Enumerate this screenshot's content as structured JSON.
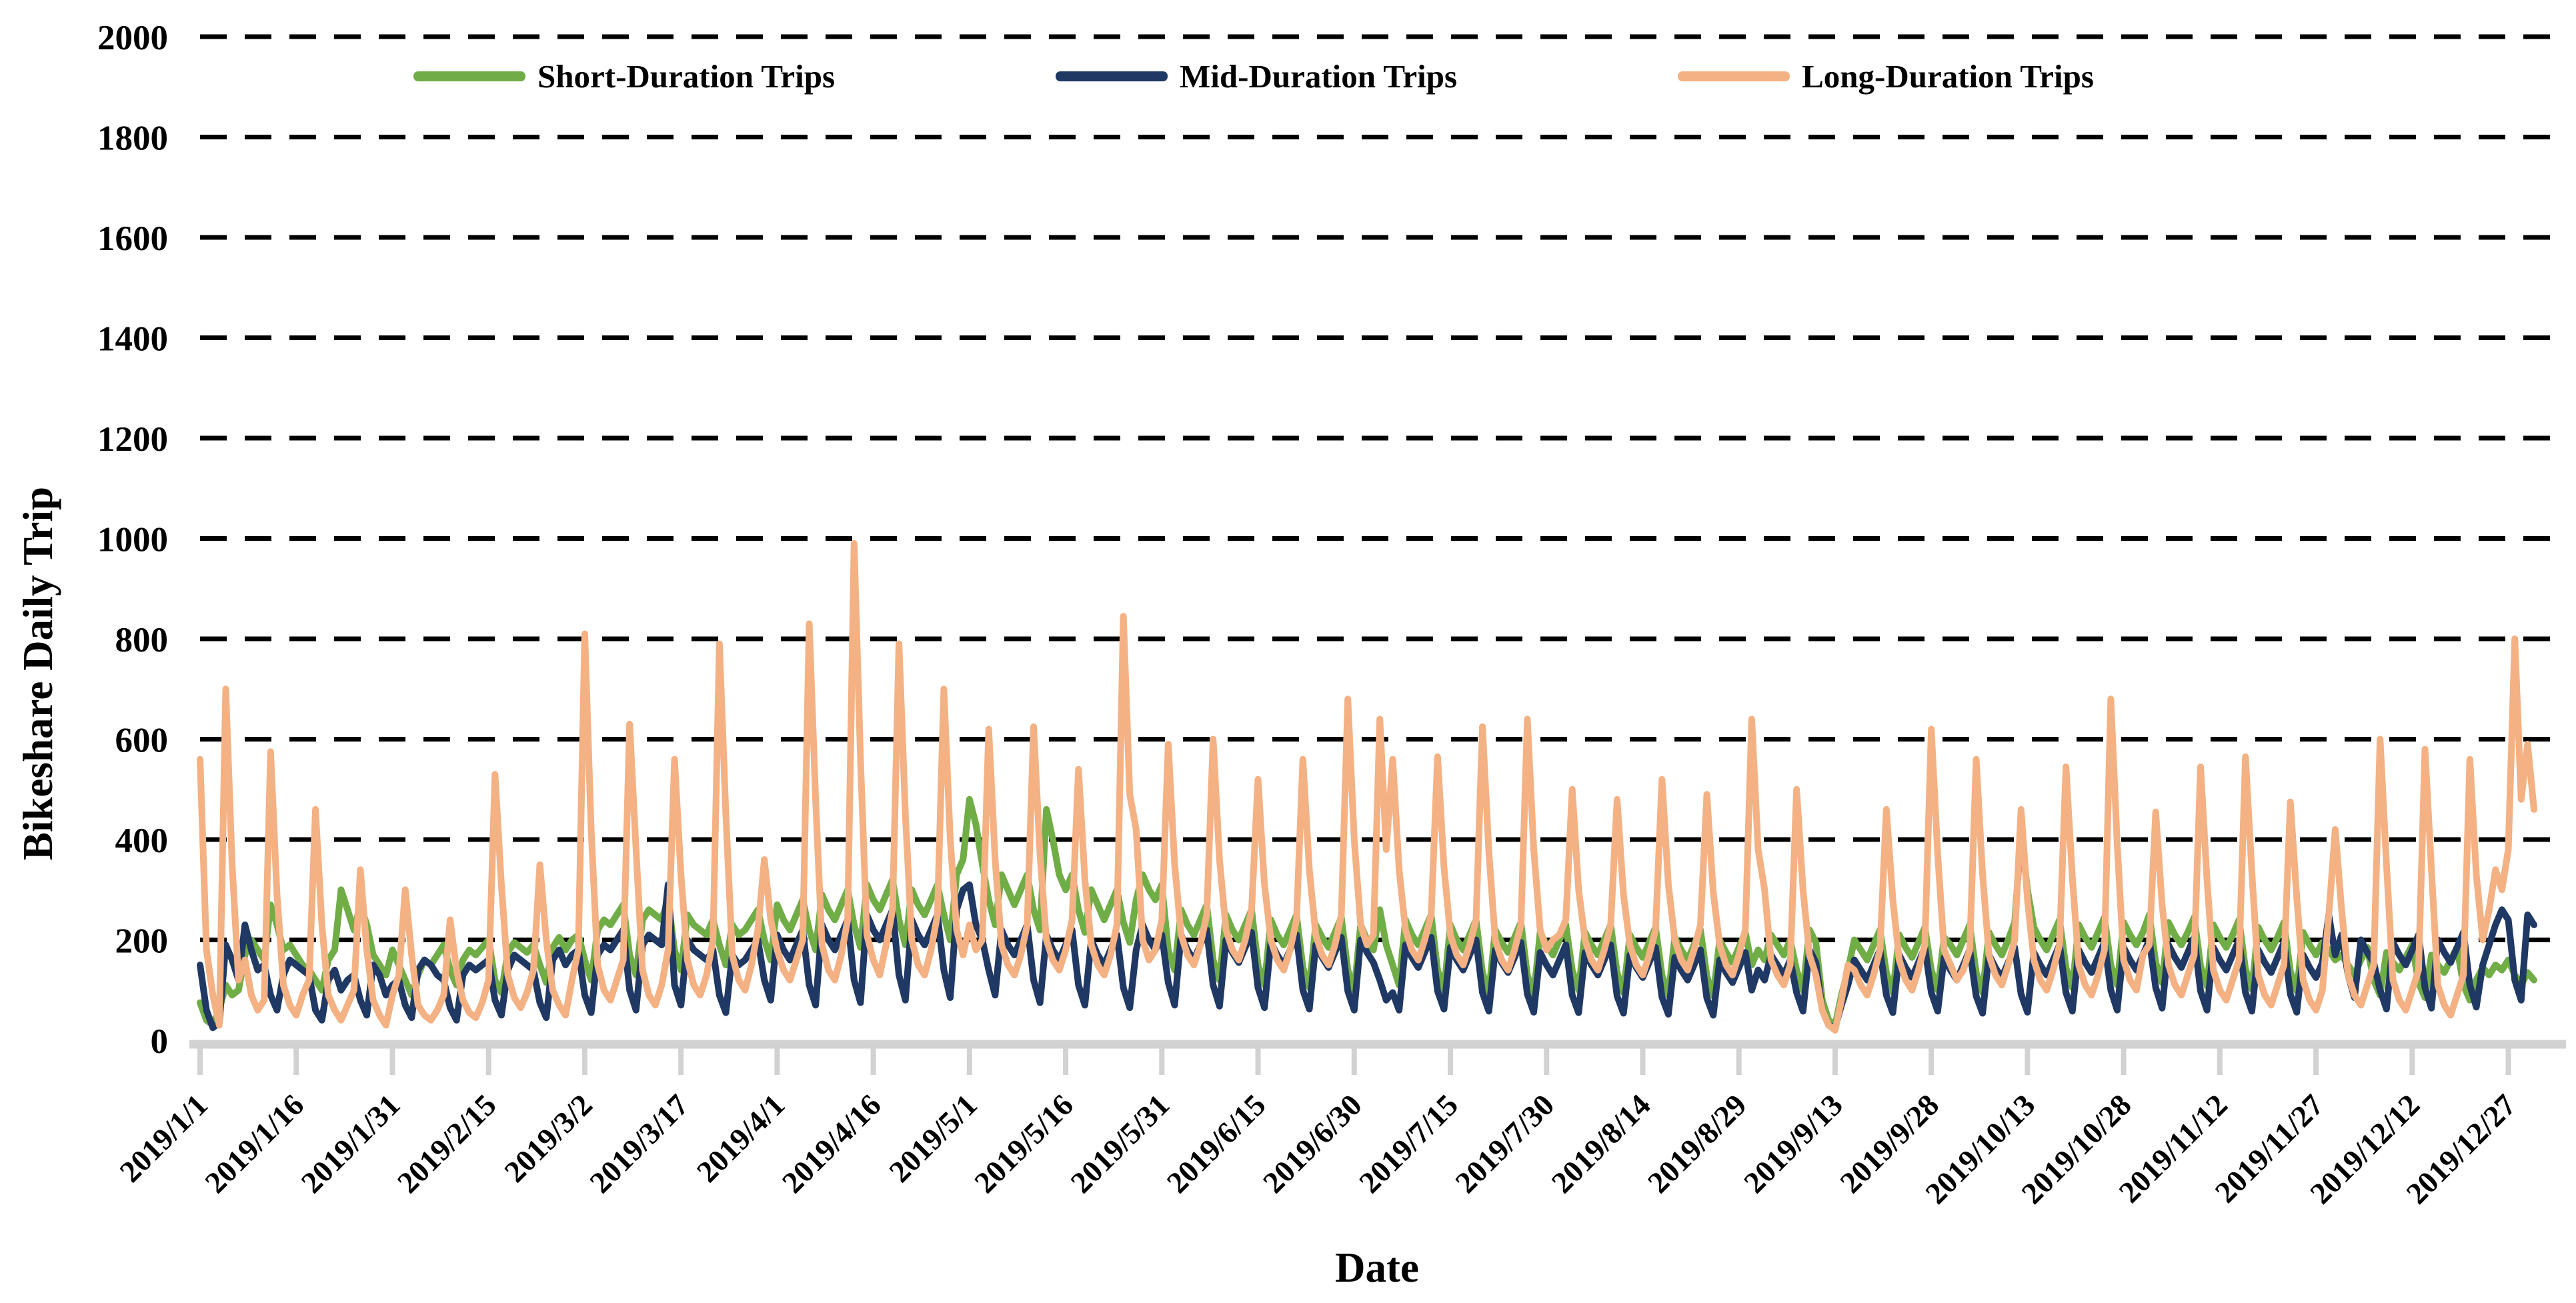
{
  "chart_data": {
    "type": "line",
    "title": "",
    "xlabel": "Date",
    "ylabel": "Bikeshare Daily Trip",
    "ylim": [
      0,
      2000
    ],
    "y_tick_step": 200,
    "y_tick_labels": [
      "0",
      "200",
      "400",
      "600",
      "800",
      "1000",
      "1200",
      "1400",
      "1600",
      "1800",
      "2000"
    ],
    "grid": "horizontal-dashed-black",
    "legend_position": "top",
    "axis_color": "#D2D2D2",
    "x_start_date": "2019/1/1",
    "x_tick_interval_days": 15,
    "x_tick_labels": [
      "2019/1/1",
      "2019/1/16",
      "2019/1/31",
      "2019/2/15",
      "2019/3/2",
      "2019/3/17",
      "2019/4/1",
      "2019/4/16",
      "2019/5/1",
      "2019/5/16",
      "2019/5/31",
      "2019/6/15",
      "2019/6/30",
      "2019/7/15",
      "2019/7/30",
      "2019/8/14",
      "2019/8/29",
      "2019/9/13",
      "2019/9/28",
      "2019/10/13",
      "2019/10/28",
      "2019/11/12",
      "2019/11/27",
      "2019/12/12",
      "2019/12/27"
    ],
    "series": [
      {
        "name": "Short-Duration Trips",
        "color": "#70AD47",
        "values": [
          75,
          40,
          30,
          60,
          110,
          90,
          100,
          170,
          200,
          180,
          160,
          270,
          230,
          180,
          190,
          170,
          150,
          140,
          120,
          100,
          160,
          180,
          300,
          260,
          220,
          270,
          230,
          170,
          150,
          130,
          180,
          150,
          120,
          90,
          130,
          160,
          150,
          170,
          190,
          140,
          110,
          160,
          180,
          170,
          185,
          200,
          120,
          95,
          175,
          195,
          185,
          175,
          190,
          150,
          115,
          185,
          205,
          180,
          200,
          210,
          160,
          120,
          220,
          240,
          230,
          250,
          270,
          170,
          130,
          240,
          260,
          250,
          240,
          280,
          180,
          140,
          250,
          230,
          220,
          210,
          240,
          190,
          150,
          230,
          210,
          220,
          240,
          260,
          200,
          160,
          270,
          240,
          220,
          250,
          280,
          220,
          180,
          290,
          260,
          240,
          270,
          300,
          230,
          185,
          310,
          280,
          260,
          290,
          320,
          240,
          190,
          300,
          270,
          250,
          280,
          310,
          250,
          200,
          330,
          360,
          480,
          430,
          350,
          280,
          230,
          330,
          300,
          270,
          300,
          330,
          260,
          220,
          460,
          400,
          330,
          300,
          330,
          260,
          215,
          300,
          270,
          240,
          270,
          300,
          235,
          195,
          280,
          330,
          300,
          280,
          310,
          180,
          140,
          260,
          230,
          210,
          240,
          270,
          160,
          120,
          250,
          220,
          200,
          230,
          260,
          150,
          110,
          240,
          210,
          190,
          220,
          250,
          145,
          105,
          230,
          205,
          185,
          215,
          245,
          140,
          100,
          230,
          200,
          180,
          260,
          190,
          150,
          110,
          240,
          210,
          190,
          220,
          250,
          140,
          100,
          230,
          200,
          180,
          210,
          240,
          135,
          95,
          220,
          195,
          175,
          205,
          235,
          130,
          90,
          215,
          190,
          170,
          200,
          230,
          140,
          100,
          215,
          190,
          170,
          200,
          230,
          135,
          95,
          210,
          185,
          165,
          195,
          225,
          130,
          90,
          205,
          180,
          160,
          190,
          220,
          128,
          88,
          200,
          175,
          155,
          185,
          215,
          150,
          180,
          160,
          210,
          190,
          170,
          200,
          140,
          100,
          220,
          195,
          80,
          40,
          30,
          90,
          140,
          200,
          180,
          160,
          190,
          220,
          135,
          95,
          210,
          185,
          165,
          195,
          225,
          140,
          100,
          205,
          190,
          170,
          200,
          230,
          135,
          95,
          215,
          190,
          170,
          200,
          235,
          410,
          300,
          225,
          200,
          180,
          210,
          240,
          145,
          105,
          230,
          205,
          185,
          215,
          245,
          150,
          110,
          235,
          210,
          190,
          215,
          250,
          155,
          115,
          235,
          210,
          190,
          215,
          245,
          148,
          108,
          230,
          205,
          185,
          210,
          240,
          142,
          102,
          225,
          200,
          180,
          205,
          235,
          138,
          98,
          215,
          190,
          170,
          195,
          180,
          160,
          170,
          150,
          130,
          160,
          185,
          120,
          90,
          175,
          155,
          140,
          165,
          190,
          115,
          85,
          170,
          150,
          135,
          160,
          185,
          110,
          80,
          120,
          145,
          130,
          150,
          140,
          160,
          130,
          110,
          135,
          120
        ]
      },
      {
        "name": "Mid-Duration Trips",
        "color": "#1F3864",
        "values": [
          150,
          60,
          25,
          35,
          190,
          160,
          120,
          230,
          180,
          140,
          150,
          90,
          60,
          130,
          160,
          150,
          140,
          130,
          60,
          40,
          120,
          140,
          100,
          120,
          130,
          80,
          50,
          150,
          130,
          90,
          110,
          120,
          70,
          45,
          140,
          160,
          150,
          130,
          120,
          65,
          40,
          130,
          150,
          140,
          150,
          160,
          80,
          50,
          140,
          170,
          160,
          150,
          140,
          75,
          45,
          160,
          180,
          150,
          170,
          180,
          90,
          55,
          170,
          190,
          180,
          200,
          220,
          100,
          60,
          190,
          210,
          200,
          190,
          310,
          110,
          70,
          200,
          180,
          170,
          160,
          180,
          90,
          55,
          170,
          150,
          160,
          180,
          200,
          120,
          80,
          210,
          180,
          160,
          190,
          220,
          110,
          70,
          230,
          200,
          180,
          210,
          240,
          120,
          75,
          250,
          220,
          200,
          230,
          260,
          130,
          80,
          240,
          210,
          190,
          220,
          250,
          140,
          85,
          260,
          300,
          310,
          230,
          200,
          140,
          90,
          220,
          190,
          170,
          200,
          230,
          120,
          75,
          210,
          180,
          160,
          190,
          220,
          110,
          70,
          200,
          170,
          150,
          180,
          210,
          105,
          65,
          180,
          230,
          200,
          180,
          210,
          115,
          70,
          210,
          180,
          160,
          190,
          220,
          110,
          68,
          200,
          175,
          155,
          185,
          215,
          105,
          65,
          195,
          170,
          150,
          180,
          210,
          100,
          62,
          190,
          165,
          145,
          175,
          205,
          98,
          60,
          200,
          175,
          155,
          120,
          80,
          95,
          60,
          190,
          165,
          145,
          175,
          205,
          98,
          62,
          185,
          160,
          140,
          170,
          200,
          95,
          58,
          180,
          155,
          135,
          165,
          195,
          92,
          56,
          175,
          150,
          130,
          160,
          190,
          90,
          55,
          175,
          150,
          130,
          160,
          190,
          88,
          54,
          170,
          145,
          125,
          155,
          185,
          86,
          52,
          165,
          140,
          120,
          150,
          180,
          84,
          50,
          160,
          135,
          115,
          145,
          175,
          100,
          140,
          120,
          170,
          150,
          130,
          160,
          95,
          58,
          180,
          155,
          60,
          30,
          25,
          70,
          110,
          160,
          140,
          120,
          150,
          180,
          90,
          55,
          170,
          145,
          125,
          155,
          185,
          95,
          58,
          165,
          140,
          120,
          150,
          180,
          88,
          54,
          170,
          145,
          125,
          155,
          185,
          92,
          56,
          175,
          150,
          130,
          160,
          190,
          95,
          58,
          180,
          155,
          135,
          165,
          195,
          100,
          60,
          185,
          160,
          140,
          170,
          200,
          105,
          64,
          190,
          165,
          145,
          175,
          205,
          98,
          60,
          185,
          160,
          140,
          170,
          200,
          95,
          58,
          180,
          155,
          135,
          165,
          195,
          92,
          56,
          170,
          145,
          125,
          155,
          250,
          170,
          210,
          130,
          85,
          200,
          175,
          155,
          100,
          62,
          195,
          170,
          150,
          180,
          210,
          105,
          64,
          200,
          175,
          155,
          185,
          215,
          110,
          66,
          150,
          190,
          230,
          260,
          240,
          120,
          80,
          250,
          230
        ]
      },
      {
        "name": "Long-Duration Trips",
        "color": "#F4B183",
        "values": [
          560,
          180,
          90,
          30,
          700,
          350,
          120,
          160,
          90,
          60,
          80,
          575,
          290,
          110,
          70,
          50,
          90,
          120,
          460,
          230,
          90,
          60,
          40,
          70,
          100,
          340,
          180,
          80,
          50,
          30,
          90,
          130,
          300,
          170,
          70,
          50,
          40,
          60,
          90,
          240,
          140,
          80,
          55,
          45,
          75,
          120,
          530,
          310,
          130,
          85,
          65,
          95,
          140,
          350,
          200,
          100,
          70,
          50,
          120,
          180,
          810,
          420,
          150,
          100,
          80,
          120,
          160,
          630,
          380,
          140,
          90,
          70,
          110,
          180,
          560,
          330,
          160,
          110,
          90,
          130,
          200,
          790,
          450,
          170,
          120,
          100,
          150,
          220,
          360,
          240,
          180,
          140,
          120,
          160,
          200,
          830,
          480,
          190,
          140,
          120,
          170,
          240,
          990,
          560,
          210,
          160,
          130,
          190,
          260,
          790,
          450,
          200,
          150,
          130,
          180,
          250,
          700,
          400,
          220,
          170,
          230,
          180,
          200,
          620,
          360,
          190,
          150,
          130,
          170,
          230,
          625,
          370,
          200,
          160,
          140,
          180,
          240,
          540,
          320,
          190,
          150,
          130,
          170,
          230,
          845,
          490,
          420,
          200,
          160,
          180,
          240,
          590,
          350,
          210,
          170,
          150,
          190,
          250,
          600,
          360,
          220,
          180,
          160,
          200,
          260,
          520,
          310,
          200,
          160,
          140,
          180,
          240,
          560,
          340,
          210,
          170,
          150,
          190,
          250,
          680,
          400,
          230,
          190,
          210,
          640,
          380,
          560,
          340,
          220,
          180,
          160,
          200,
          250,
          565,
          345,
          210,
          170,
          150,
          190,
          240,
          625,
          375,
          200,
          160,
          140,
          180,
          230,
          640,
          380,
          220,
          180,
          200,
          210,
          240,
          500,
          300,
          200,
          160,
          140,
          180,
          230,
          480,
          290,
          190,
          150,
          130,
          170,
          220,
          520,
          310,
          200,
          160,
          140,
          180,
          230,
          490,
          295,
          190,
          150,
          130,
          170,
          220,
          640,
          380,
          300,
          160,
          130,
          110,
          150,
          500,
          300,
          170,
          130,
          60,
          30,
          20,
          80,
          150,
          140,
          110,
          90,
          130,
          180,
          460,
          280,
          160,
          120,
          100,
          140,
          190,
          620,
          370,
          180,
          150,
          120,
          140,
          180,
          560,
          330,
          170,
          130,
          110,
          150,
          200,
          460,
          280,
          160,
          120,
          100,
          140,
          190,
          545,
          325,
          150,
          110,
          90,
          130,
          180,
          680,
          390,
          160,
          120,
          100,
          170,
          190,
          455,
          270,
          150,
          110,
          90,
          130,
          170,
          545,
          320,
          140,
          100,
          80,
          120,
          160,
          565,
          335,
          130,
          90,
          70,
          110,
          150,
          475,
          285,
          120,
          80,
          60,
          100,
          250,
          420,
          260,
          130,
          90,
          70,
          110,
          150,
          600,
          350,
          120,
          80,
          60,
          100,
          140,
          580,
          340,
          110,
          70,
          50,
          90,
          130,
          560,
          330,
          200,
          260,
          340,
          300,
          380,
          800,
          480,
          590,
          460
        ]
      }
    ]
  }
}
